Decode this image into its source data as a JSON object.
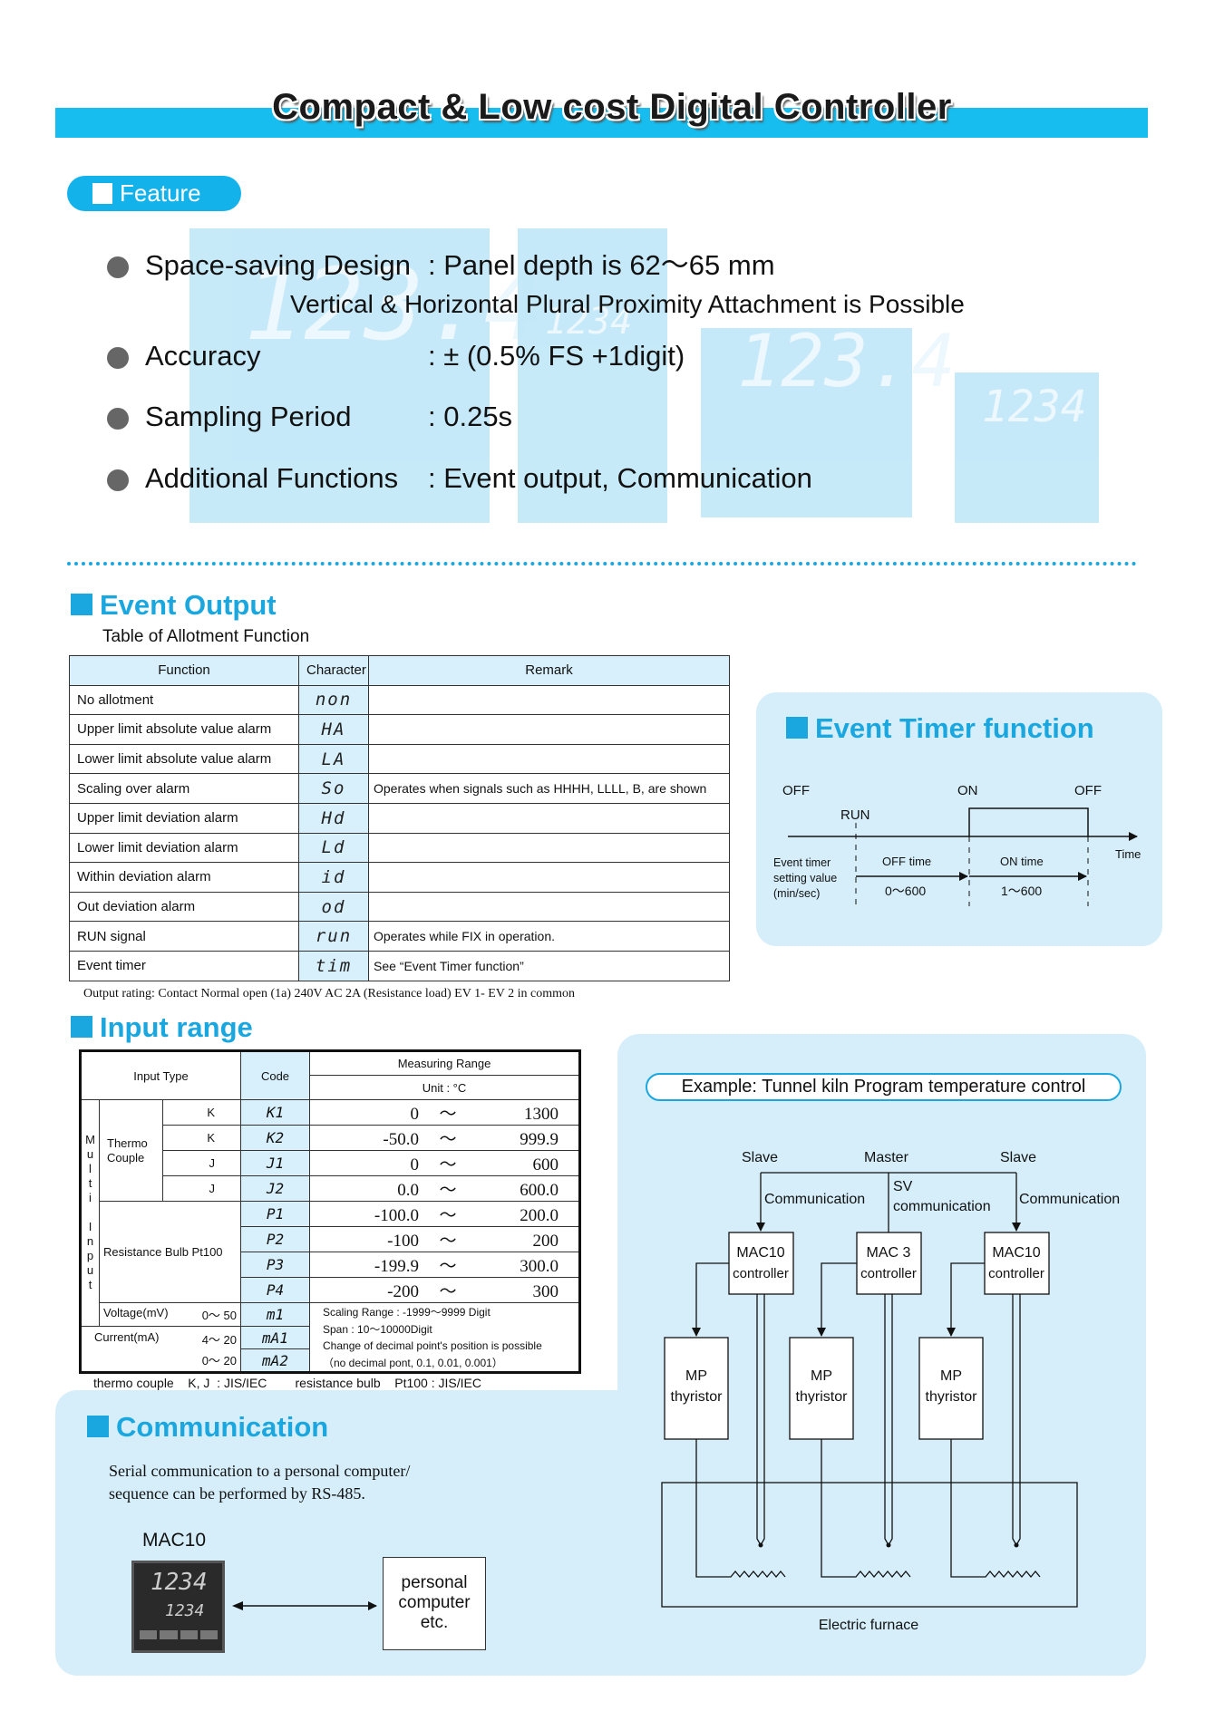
{
  "title": "Compact & Low cost Digital Controller",
  "feature": {
    "label": "Feature",
    "items": [
      {
        "name": "Space-saving Design",
        "value": ": Panel  depth is 62～65 mm",
        "extra": "Vertical & Horizontal Plural Proximity Attachment is Possible"
      },
      {
        "name": "Accuracy",
        "value": ": ± (0.5% FS +1digit)"
      },
      {
        "name": "Sampling Period",
        "value": ": 0.25s"
      },
      {
        "name": "Additional Functions",
        "value": ": Event output, Communication"
      }
    ],
    "background_displays": [
      "123.4",
      "1234",
      "123.4",
      "1234"
    ]
  },
  "event_output": {
    "heading": "Event Output",
    "subtitle": "Table of Allotment Function",
    "columns": [
      "Function",
      "Character",
      "Remark"
    ],
    "rows": [
      [
        "No allotment",
        "non",
        ""
      ],
      [
        "Upper limit absolute value alarm",
        "HA",
        ""
      ],
      [
        "Lower limit absolute value alarm",
        "LA",
        ""
      ],
      [
        "Scaling over alarm",
        "So",
        "Operates when signals such as HHHH, LLLL, B, are shown"
      ],
      [
        "Upper limit deviation alarm",
        "Hd",
        ""
      ],
      [
        "Lower limit deviation alarm",
        "Ld",
        ""
      ],
      [
        "Within deviation alarm",
        "id",
        ""
      ],
      [
        "Out deviation alarm",
        "od",
        ""
      ],
      [
        "RUN signal",
        "run",
        "Operates while FIX in operation."
      ],
      [
        "Event timer",
        "tim",
        "See “Event Timer function”"
      ]
    ],
    "rating": "Output rating: Contact  Normal open (1a)  240V  AC  2A (Resistance load)  EV 1- EV 2  in common"
  },
  "event_timer": {
    "heading": "Event Timer function",
    "off1": "OFF",
    "on": "ON",
    "off2": "OFF",
    "run": "RUN",
    "time": "Time",
    "setting": [
      "Event timer",
      "setting value",
      "(min/sec)"
    ],
    "off_time": "OFF time",
    "off_range": "0～600",
    "on_time": "ON time",
    "on_range": "1～600"
  },
  "input_range": {
    "heading": "Input range",
    "h_input_type": "Input Type",
    "h_code": "Code",
    "h_range": "Measuring Range",
    "h_unit": "Unit : °C",
    "multi_input": [
      "M",
      "u",
      "l",
      "t",
      "i",
      "",
      "I",
      "n",
      "p",
      "u",
      "t"
    ],
    "thermo": "Thermo Couple",
    "resistance": "Resistance Bulb  Pt100",
    "rows": [
      {
        "type": "K",
        "code": "K1",
        "lo": "0",
        "hi": "1300"
      },
      {
        "type": "K",
        "code": "K2",
        "lo": "-50.0",
        "hi": "999.9"
      },
      {
        "type": "J",
        "code": "J1",
        "lo": "0",
        "hi": "600"
      },
      {
        "type": "J",
        "code": "J2",
        "lo": "0.0",
        "hi": "600.0"
      },
      {
        "code": "P1",
        "lo": "-100.0",
        "hi": "200.0"
      },
      {
        "code": "P2",
        "lo": "-100",
        "hi": "200"
      },
      {
        "code": "P3",
        "lo": "-199.9",
        "hi": "300.0"
      },
      {
        "code": "P4",
        "lo": "-200",
        "hi": "300"
      }
    ],
    "tilde": "～",
    "voltage": {
      "label": "Voltage(mV)",
      "range": "0～ 50",
      "code": "m1"
    },
    "current": {
      "label": "Current(mA)",
      "r1": "4～ 20",
      "c1": "mA1",
      "r2": "0～ 20",
      "c2": "mA2"
    },
    "notes": [
      "Scaling  Range : -1999～9999 Digit",
      "Span : 10～10000Digit",
      "Change of decimal point's position is possible",
      "（no decimal pont, 0.1, 0.01, 0.001）"
    ],
    "footer": "thermo couple    K, J  : JIS/IEC        resistance bulb    Pt100 : JIS/IEC"
  },
  "communication": {
    "heading": "Communication",
    "text": [
      "Serial communication to a personal computer/",
      "sequence can be performed by RS-485."
    ],
    "device_label": "MAC10",
    "device_pv": "1234",
    "device_sv": "1234",
    "pc": [
      "personal",
      "computer",
      "etc."
    ]
  },
  "example": {
    "title": "Example: Tunnel kiln Program temperature control",
    "slave1": "Slave",
    "master": "Master",
    "slave2": "Slave",
    "comm1": "Communication",
    "sv1": "SV",
    "sv2": "communication",
    "comm2": "Communication",
    "ctrl": [
      [
        "MAC10",
        "controller"
      ],
      [
        "MAC 3",
        "controller"
      ],
      [
        "MAC10",
        "controller"
      ]
    ],
    "mp": [
      "MP",
      "thyristor"
    ],
    "furnace": "Electric furnace"
  },
  "colors": {
    "accent": "#16bdee",
    "heading": "#1aa7e0",
    "panel": "#d5eefa",
    "table_header": "#d7f0fb"
  }
}
